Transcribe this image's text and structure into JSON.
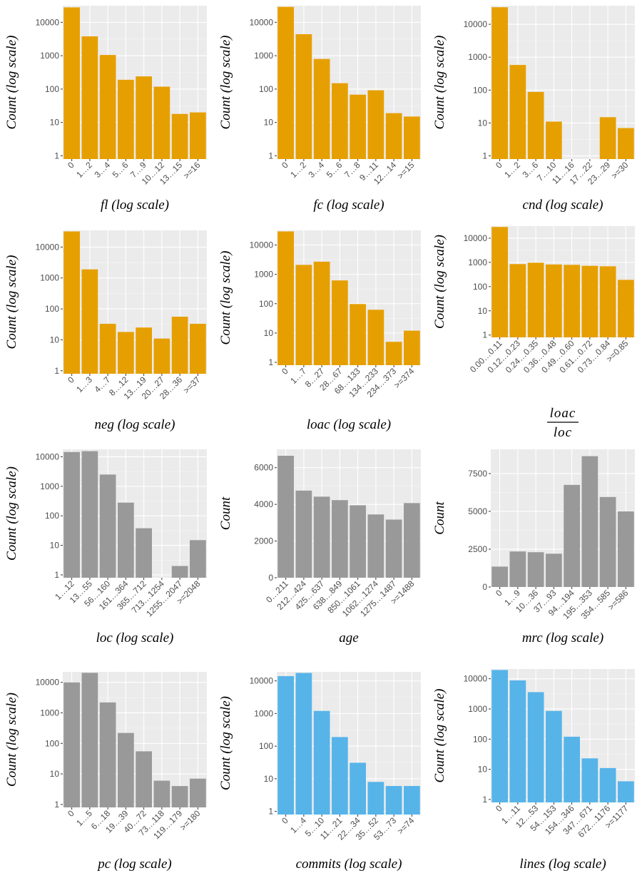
{
  "colors": {
    "orange": "#E69F00",
    "gray": "#999999",
    "blue": "#56B4E9",
    "panel_bg": "#EBEBEB",
    "grid": "#FFFFFF"
  },
  "chart_data": [
    {
      "type": "bar",
      "scale": "log",
      "color": "orange",
      "xlabel": "fl (log scale)",
      "ylabel": "Count (log scale)",
      "yticks": [
        "1",
        "10",
        "100",
        "1000",
        "10000"
      ],
      "ylim": [
        1,
        30000
      ],
      "categories": [
        "0",
        "1…2",
        "3…4",
        "5…6",
        "7…9",
        "10…12",
        "13…15",
        ">=16"
      ],
      "values": [
        28000,
        3800,
        1050,
        190,
        240,
        118,
        18,
        20
      ]
    },
    {
      "type": "bar",
      "scale": "log",
      "color": "orange",
      "xlabel": "fc (log scale)",
      "ylabel": "Count (log scale)",
      "yticks": [
        "1",
        "10",
        "100",
        "1000",
        "10000"
      ],
      "ylim": [
        1,
        30000
      ],
      "categories": [
        "0",
        "1…2",
        "3…4",
        "5…6",
        "7…8",
        "9…11",
        "12…14",
        ">=15"
      ],
      "values": [
        29000,
        4400,
        800,
        150,
        68,
        92,
        19,
        15
      ]
    },
    {
      "type": "bar",
      "scale": "log",
      "color": "orange",
      "xlabel": "cnd (log scale)",
      "ylabel": "Count (log scale)",
      "yticks": [
        "1",
        "10",
        "100",
        "1000",
        "10000"
      ],
      "ylim": [
        1,
        35000
      ],
      "categories": [
        "0",
        "1…2",
        "3…6",
        "7…10",
        "11…16",
        "17…22",
        "23…29",
        ">=30"
      ],
      "values": [
        33000,
        580,
        88,
        11,
        0,
        0,
        15,
        7
      ]
    },
    {
      "type": "bar",
      "scale": "log",
      "color": "orange",
      "xlabel": "neg (log scale)",
      "ylabel": "Count (log scale)",
      "yticks": [
        "1",
        "10",
        "100",
        "1000",
        "10000"
      ],
      "ylim": [
        1,
        33000
      ],
      "categories": [
        "0",
        "1…3",
        "4…7",
        "8…12",
        "13…19",
        "20…27",
        "28…36",
        ">=37"
      ],
      "values": [
        32000,
        1900,
        33,
        18,
        25,
        11,
        56,
        33
      ]
    },
    {
      "type": "bar",
      "scale": "log",
      "color": "orange",
      "xlabel": "loac (log scale)",
      "ylabel": "Count (log scale)",
      "yticks": [
        "1",
        "10",
        "100",
        "1000",
        "10000"
      ],
      "ylim": [
        1,
        30000
      ],
      "categories": [
        "0",
        "1…7",
        "8…27",
        "28…67",
        "68…133",
        "134…233",
        "234…373",
        ">=374"
      ],
      "values": [
        29000,
        2100,
        2700,
        620,
        97,
        62,
        5,
        12
      ]
    },
    {
      "type": "bar",
      "scale": "log",
      "color": "orange",
      "xlabel_num": "loac",
      "xlabel_den": "loc",
      "ylabel": "Count (log scale)",
      "yticks": [
        "1",
        "10",
        "100",
        "1000",
        "10000"
      ],
      "ylim": [
        1,
        30000
      ],
      "categories": [
        "0.00…0.11",
        "0.12…0.23",
        "0.24…0.35",
        "0.36…0.48",
        "0.49…0.60",
        "0.61…0.72",
        "0.73…0.84",
        ">=0.85"
      ],
      "values": [
        29000,
        850,
        970,
        820,
        790,
        720,
        690,
        190
      ]
    },
    {
      "type": "bar",
      "scale": "log",
      "color": "gray",
      "xlabel": "loc (log scale)",
      "ylabel": "Count (log scale)",
      "yticks": [
        "1",
        "10",
        "100",
        "1000",
        "10000"
      ],
      "ylim": [
        1,
        17000
      ],
      "categories": [
        "1…12",
        "13…55",
        "56…160",
        "161…364",
        "365…712",
        "713…1254",
        "1255…2047",
        ">=2048"
      ],
      "values": [
        14500,
        15500,
        2500,
        280,
        38,
        0,
        2,
        15
      ]
    },
    {
      "type": "bar",
      "scale": "linear",
      "color": "gray",
      "xlabel": "age",
      "ylabel": "Count",
      "yticks": [
        0,
        2000,
        4000,
        6000
      ],
      "ylim": [
        0,
        7000
      ],
      "categories": [
        "0…211",
        "212…424",
        "425…637",
        "638…849",
        "850…1061",
        "1062…1274",
        "1275…1487",
        ">=1488"
      ],
      "values": [
        6650,
        4750,
        4420,
        4230,
        3950,
        3450,
        3170,
        4070
      ]
    },
    {
      "type": "bar",
      "scale": "linear",
      "color": "gray",
      "xlabel": "mrc (log scale)",
      "ylabel": "Count",
      "yticks": [
        0,
        2500,
        5000,
        7500
      ],
      "ylim": [
        0,
        9100
      ],
      "categories": [
        "0",
        "1…9",
        "10…36",
        "37…93",
        "94…194",
        "195…353",
        "354…585",
        ">=586"
      ],
      "values": [
        1350,
        2350,
        2300,
        2200,
        6750,
        8650,
        5950,
        5000
      ]
    },
    {
      "type": "bar",
      "scale": "log",
      "color": "gray",
      "xlabel": "pc (log scale)",
      "ylabel": "Count (log scale)",
      "yticks": [
        "1",
        "10",
        "100",
        "1000",
        "10000"
      ],
      "ylim": [
        1,
        21000
      ],
      "categories": [
        "0",
        "1…5",
        "6…18",
        "19…39",
        "40…72",
        "73…118",
        "119…179",
        ">=180"
      ],
      "values": [
        10000,
        20500,
        2200,
        220,
        55,
        6,
        4,
        7
      ]
    },
    {
      "type": "bar",
      "scale": "log",
      "color": "blue",
      "xlabel": "commits (log scale)",
      "ylabel": "Count (log scale)",
      "yticks": [
        "1",
        "10",
        "100",
        "1000",
        "10000"
      ],
      "ylim": [
        1,
        18000
      ],
      "categories": [
        "0",
        "1…4",
        "5…10",
        "11…21",
        "22…34",
        "35…52",
        "53…73",
        ">=74"
      ],
      "values": [
        14000,
        17500,
        1200,
        190,
        31,
        8,
        6,
        6
      ]
    },
    {
      "type": "bar",
      "scale": "log",
      "color": "blue",
      "xlabel": "lines (log scale)",
      "ylabel": "Count (log scale)",
      "yticks": [
        "1",
        "10",
        "100",
        "1000",
        "10000"
      ],
      "ylim": [
        1,
        20000
      ],
      "categories": [
        "0",
        "1…11",
        "12…53",
        "54…153",
        "154…346",
        "347…671",
        "672…1176",
        ">=1177"
      ],
      "values": [
        19500,
        8800,
        3600,
        860,
        120,
        23,
        11,
        4
      ]
    }
  ]
}
